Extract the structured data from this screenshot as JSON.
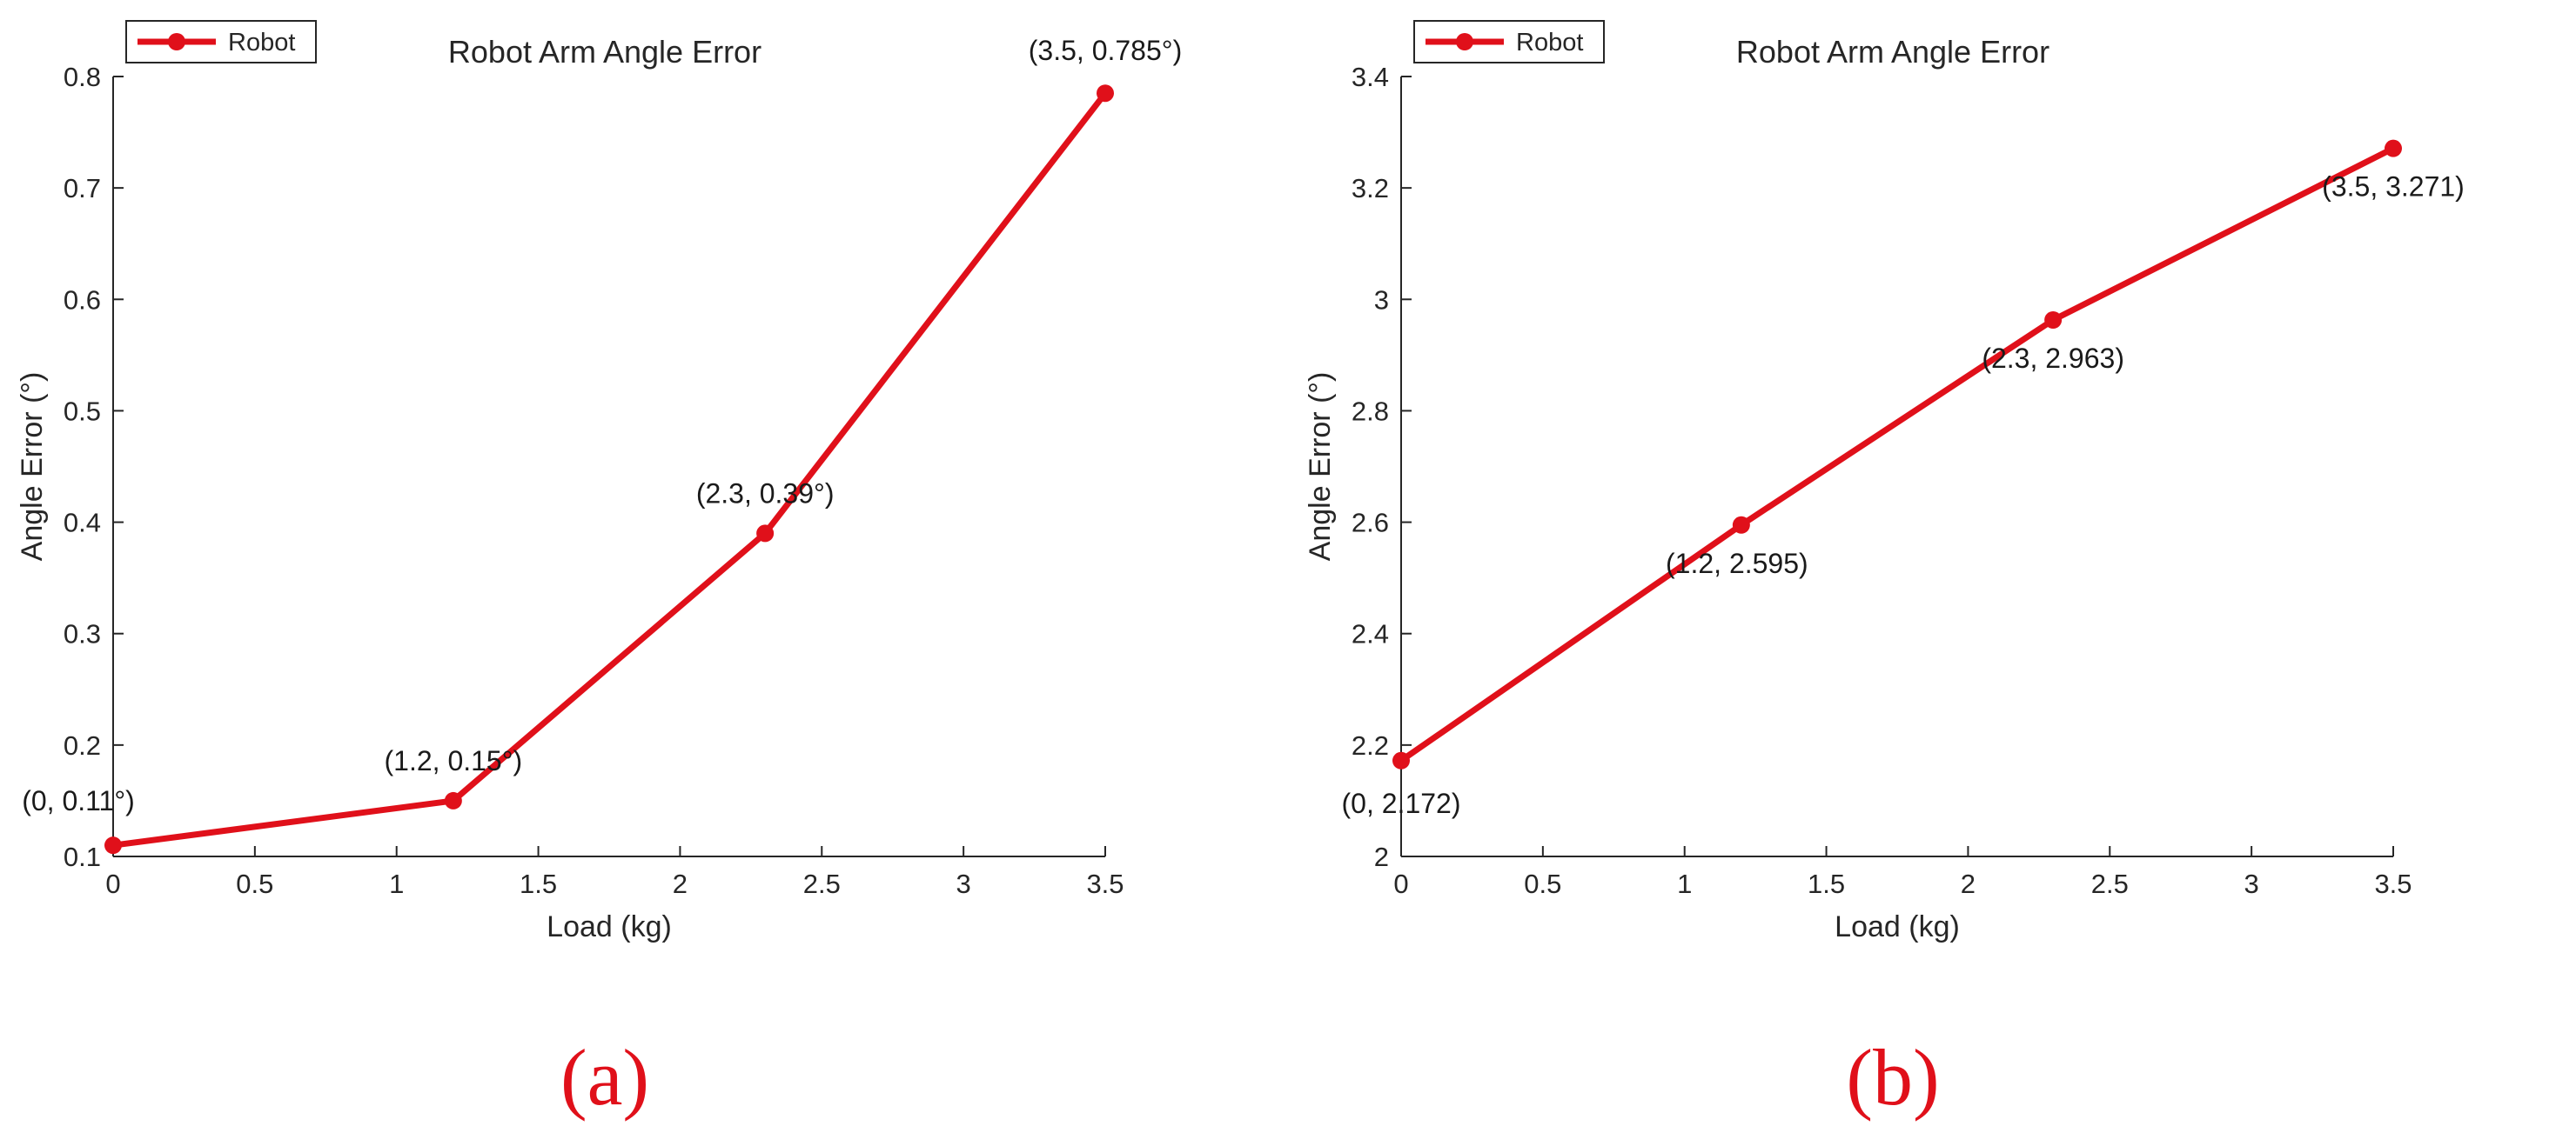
{
  "chart_data": [
    {
      "type": "line",
      "panel_label": "(a)",
      "title": "Robot Arm Angle Error",
      "xlabel": "Load (kg)",
      "ylabel": "Angle Error (°)",
      "xlim": [
        0,
        3.5
      ],
      "ylim": [
        0.1,
        0.8
      ],
      "xticks": [
        "0",
        "0.5",
        "1",
        "1.5",
        "2",
        "2.5",
        "3",
        "3.5"
      ],
      "yticks": [
        "0.1",
        "0.2",
        "0.3",
        "0.4",
        "0.5",
        "0.6",
        "0.7",
        "0.8"
      ],
      "grid": false,
      "legend_position": "top-left",
      "series": [
        {
          "name": "Robot",
          "color": "#e0101a",
          "x": [
            0,
            1.2,
            2.3,
            3.5
          ],
          "y": [
            0.11,
            0.15,
            0.39,
            0.785
          ],
          "labels": [
            "(0, 0.11°)",
            "(1.2, 0.15°)",
            "(2.3, 0.39°)",
            "(3.5, 0.785°)"
          ]
        }
      ]
    },
    {
      "type": "line",
      "panel_label": "(b)",
      "title": "Robot Arm Angle Error",
      "xlabel": "Load (kg)",
      "ylabel": "Angle Error (°)",
      "xlim": [
        0,
        3.5
      ],
      "ylim": [
        2,
        3.4
      ],
      "xticks": [
        "0",
        "0.5",
        "1",
        "1.5",
        "2",
        "2.5",
        "3",
        "3.5"
      ],
      "yticks": [
        "2",
        "2.2",
        "2.4",
        "2.6",
        "2.8",
        "3",
        "3.2",
        "3.4"
      ],
      "grid": false,
      "legend_position": "top-left",
      "series": [
        {
          "name": "Robot",
          "color": "#e0101a",
          "x": [
            0,
            1.2,
            2.3,
            3.5
          ],
          "y": [
            2.172,
            2.595,
            2.963,
            3.271
          ],
          "labels": [
            "(0, 2.172)",
            "(1.2, 2.595)",
            "(2.3, 2.963)",
            "(3.5, 3.271)"
          ]
        }
      ]
    }
  ]
}
